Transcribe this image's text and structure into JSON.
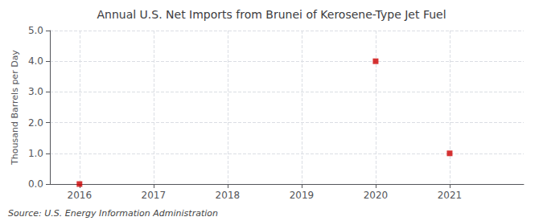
{
  "chart_data": {
    "type": "scatter",
    "title": "Annual U.S. Net Imports from Brunei of Kerosene-Type Jet Fuel",
    "ylabel": "Thousand Barrels per Day",
    "annotations": [
      "Source: U.S. Energy Information Administration"
    ],
    "x": [
      2016,
      2020,
      2021
    ],
    "values": [
      0.0,
      4.0,
      1.0
    ],
    "color": "#cc0000",
    "marker": "square",
    "xlim": [
      2015.6,
      2022.0
    ],
    "xticks": [
      2016,
      2017,
      2018,
      2019,
      2020,
      2021
    ],
    "ylim": [
      0.0,
      5.0
    ],
    "yticks": [
      {
        "value": 0.0,
        "label": "0.0"
      },
      {
        "value": 1.0,
        "label": "1.0"
      },
      {
        "value": 2.0,
        "label": "2.0"
      },
      {
        "value": 3.0,
        "label": "3.0"
      },
      {
        "value": 4.0,
        "label": "4.0"
      },
      {
        "value": 5.0,
        "label": "5.0"
      }
    ],
    "grid": true
  }
}
